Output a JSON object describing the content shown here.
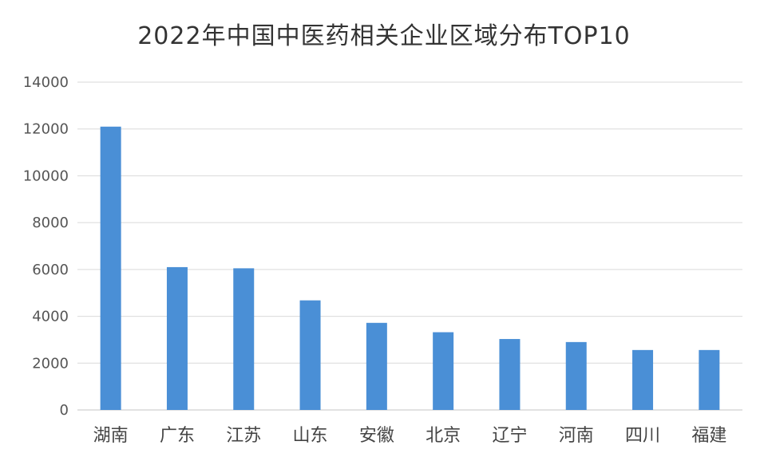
{
  "chart_data": {
    "type": "bar",
    "title": "2022年中国中医药相关企业区域分布TOP10",
    "categories": [
      "湖南",
      "广东",
      "江苏",
      "山东",
      "安徽",
      "北京",
      "辽宁",
      "河南",
      "四川",
      "福建"
    ],
    "values": [
      12100,
      6100,
      6050,
      4680,
      3720,
      3320,
      3030,
      2900,
      2560,
      2560
    ],
    "ylim": [
      0,
      14000
    ],
    "yticks": [
      0,
      2000,
      4000,
      6000,
      8000,
      10000,
      12000,
      14000
    ],
    "ytick_labels": [
      "0",
      "2000",
      "4000",
      "6000",
      "8000",
      "10000",
      "12000",
      "14000"
    ],
    "grid": true,
    "legend": "none",
    "bar_color": "#4a8fd6",
    "grid_color": "#d9d9d9"
  }
}
